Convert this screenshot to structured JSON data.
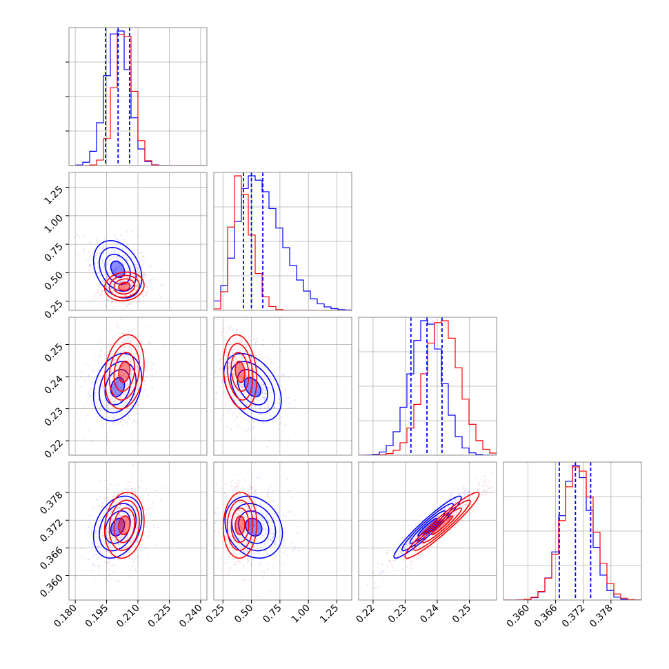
{
  "chart_data": {
    "type": "corner",
    "grid": true,
    "colors": {
      "blue": "#0000ff",
      "red": "#ff0000",
      "grid": "#b0b0b0",
      "axes": "#888888"
    },
    "parameters": [
      {
        "range": [
          0.177,
          0.243
        ],
        "ticks": [
          0.18,
          0.195,
          0.21,
          0.225,
          0.24
        ],
        "tick_labels": [
          "0.180",
          "0.195",
          "0.210",
          "0.225",
          "0.240"
        ]
      },
      {
        "range": [
          0.17,
          1.38
        ],
        "ticks": [
          0.25,
          0.5,
          0.75,
          1.0,
          1.25
        ],
        "tick_labels": [
          "0.25",
          "0.50",
          "0.75",
          "1.00",
          "1.25"
        ]
      },
      {
        "range": [
          0.2155,
          0.2585
        ],
        "ticks": [
          0.22,
          0.23,
          0.24,
          0.25
        ],
        "tick_labels": [
          "0.22",
          "0.23",
          "0.24",
          "0.25"
        ]
      },
      {
        "range": [
          0.3547,
          0.3846
        ],
        "ticks": [
          0.36,
          0.366,
          0.372,
          0.378
        ],
        "tick_labels": [
          "0.360",
          "0.366",
          "0.372",
          "0.378"
        ]
      }
    ],
    "series": [
      {
        "color": "blue",
        "mean": [
          0.2003,
          0.5,
          0.2367,
          0.3705
        ],
        "sd": [
          0.0055,
          0.13,
          0.005,
          0.0032
        ],
        "quantiles": [
          [
            0.1945,
            0.2005,
            0.206
          ],
          [
            0.43,
            0.5,
            0.6
          ],
          [
            0.2318,
            0.2368,
            0.2415
          ],
          [
            0.3668,
            0.3703,
            0.3736
          ]
        ],
        "contours": {
          "1-0": {
            "mean": [
              0.2003,
              0.53
            ],
            "sd": [
              0.0055,
              0.12
            ],
            "rho": -0.3
          },
          "2-0": {
            "mean": [
              0.2003,
              0.2367
            ],
            "sd": [
              0.0055,
              0.005
            ],
            "rho": 0.25
          },
          "2-1": {
            "mean": [
              0.51,
              0.2367
            ],
            "sd": [
              0.12,
              0.005
            ],
            "rho": -0.4
          },
          "3-0": {
            "mean": [
              0.2003,
              0.3705
            ],
            "sd": [
              0.0055,
              0.0032
            ],
            "rho": 0.3
          },
          "3-1": {
            "mean": [
              0.52,
              0.3705
            ],
            "sd": [
              0.12,
              0.0032
            ],
            "rho": -0.2
          },
          "3-2": {
            "mean": [
              0.237,
              0.3705
            ],
            "sd": [
              0.005,
              0.0032
            ],
            "rho": 0.95
          }
        }
      },
      {
        "color": "red",
        "mean": [
          0.2033,
          0.38,
          0.2415,
          0.3709
        ],
        "sd": [
          0.0045,
          0.06,
          0.0055,
          0.0034
        ],
        "quantiles": [
          [
            0.2,
            0.2035,
            0.2075
          ],
          [
            0.33,
            0.38,
            0.44
          ],
          [
            0.236,
            0.241,
            0.247
          ],
          [
            0.3675,
            0.3709,
            0.3742
          ]
        ],
        "contours": {
          "1-0": {
            "mean": [
              0.2035,
              0.38
            ],
            "sd": [
              0.0045,
              0.06
            ],
            "rho": 0.1
          },
          "2-0": {
            "mean": [
              0.2035,
              0.2415
            ],
            "sd": [
              0.0045,
              0.0055
            ],
            "rho": 0.2
          },
          "2-1": {
            "mean": [
              0.4,
              0.2415
            ],
            "sd": [
              0.07,
              0.0055
            ],
            "rho": -0.2
          },
          "3-0": {
            "mean": [
              0.2035,
              0.3709
            ],
            "sd": [
              0.0045,
              0.0034
            ],
            "rho": 0.15
          },
          "3-1": {
            "mean": [
              0.4,
              0.3709
            ],
            "sd": [
              0.07,
              0.0034
            ],
            "rho": 0.05
          },
          "3-2": {
            "mean": [
              0.2415,
              0.3709
            ],
            "sd": [
              0.0055,
              0.0034
            ],
            "rho": 0.95
          }
        }
      }
    ]
  }
}
